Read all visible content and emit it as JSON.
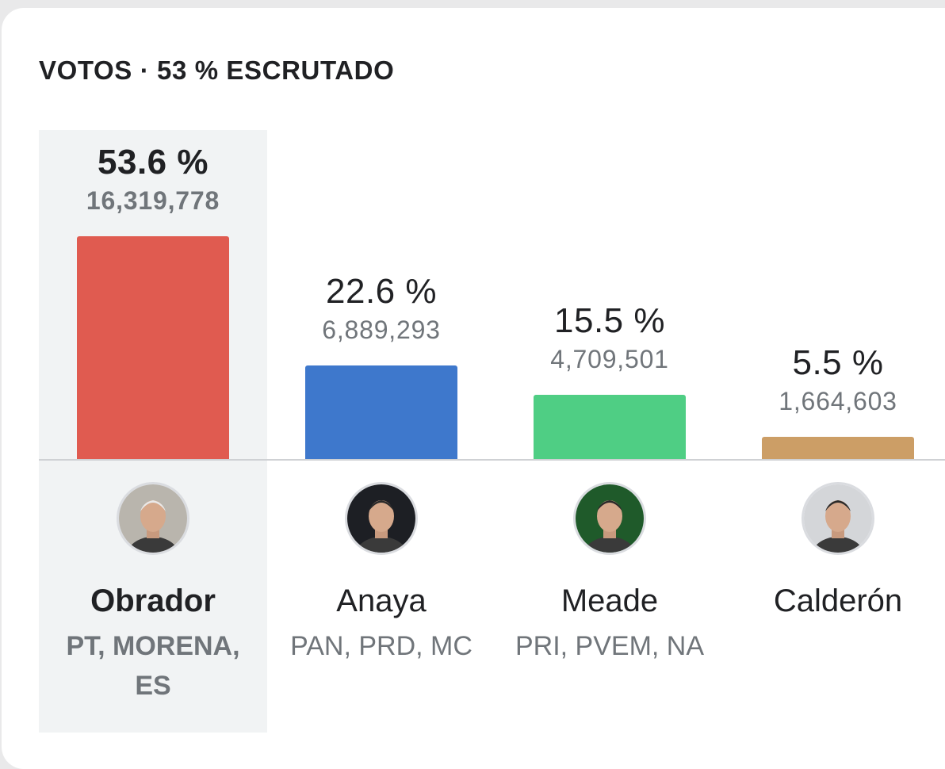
{
  "header": {
    "title": "VOTOS · 53 % ESCRUTADO"
  },
  "chart_data": {
    "type": "bar",
    "title": "VOTOS · 53 % ESCRUTADO",
    "categories": [
      "Obrador",
      "Anaya",
      "Meade",
      "Calderón"
    ],
    "series": [
      {
        "values": [
          53.6,
          22.6,
          15.5,
          5.5
        ]
      }
    ],
    "labels": [
      "53.6 %",
      "22.6 %",
      "15.5 %",
      "5.5 %"
    ],
    "votes": [
      "16,319,778",
      "6,889,293",
      "4,709,501",
      "1,664,603"
    ],
    "ylim": [
      0,
      53.6
    ],
    "grid": false,
    "legend": "none"
  },
  "candidates": [
    {
      "name": "Obrador",
      "parties": "PT, MORENA, ES",
      "pct_label": "53.6 %",
      "votes": "16,319,778",
      "color": "#e05b50",
      "leading": true,
      "icon": "candidate-photo-icon"
    },
    {
      "name": "Anaya",
      "parties": "PAN, PRD, MC",
      "pct_label": "22.6 %",
      "votes": "6,889,293",
      "color": "#3e78cc",
      "leading": false,
      "icon": "candidate-photo-icon"
    },
    {
      "name": "Meade",
      "parties": "PRI, PVEM, NA",
      "pct_label": "15.5 %",
      "votes": "4,709,501",
      "color": "#4fce84",
      "leading": false,
      "icon": "candidate-photo-icon"
    },
    {
      "name": "Calderón",
      "parties": "",
      "pct_label": "5.5 %",
      "votes": "1,664,603",
      "color": "#cc9e66",
      "leading": false,
      "icon": "candidate-photo-icon"
    }
  ]
}
